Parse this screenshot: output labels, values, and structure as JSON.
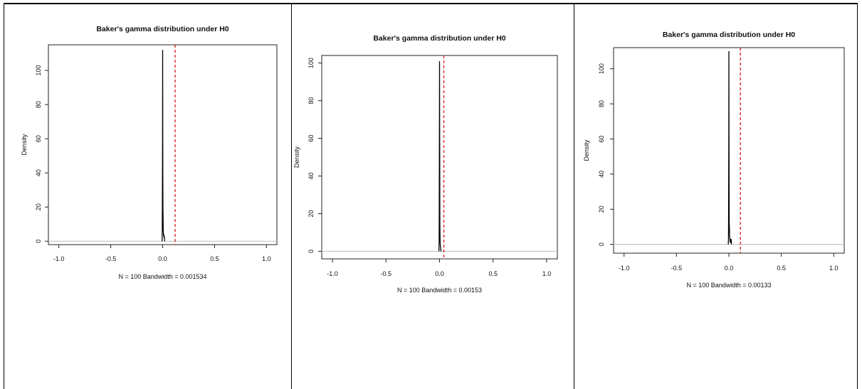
{
  "chart_data": [
    {
      "type": "line",
      "title": "Baker's gamma distribution under H0",
      "xlabel": "N = 100  Bandwidth = 0.001534",
      "ylabel": "Density",
      "xlim": [
        -1.1,
        1.1
      ],
      "ylim": [
        -2,
        115
      ],
      "x_ticks": [
        -1.0,
        -0.5,
        0.0,
        0.5,
        1.0
      ],
      "x_tick_labels": [
        "-1.0",
        "-0.5",
        "0.0",
        "0.5",
        "1.0"
      ],
      "y_ticks": [
        0,
        20,
        40,
        60,
        80,
        100
      ],
      "y_tick_labels": [
        "0",
        "20",
        "40",
        "60",
        "80",
        "100"
      ],
      "observed_value": 0.12,
      "series": [
        {
          "x": [
            -0.006,
            -0.004,
            -0.003,
            -0.002,
            -0.001,
            0.0,
            0.001,
            0.002,
            0.003,
            0.004,
            0.005,
            0.006,
            0.008,
            0.01,
            0.012,
            0.014,
            0.016,
            0.018,
            0.02
          ],
          "y": [
            0,
            3,
            18,
            36,
            60,
            112,
            60,
            36,
            18,
            16,
            10,
            6,
            4,
            3,
            4,
            2,
            3,
            1,
            0
          ]
        }
      ],
      "colors": {
        "density": "#000000",
        "observed_line": "#d62728",
        "baseline": "#bbbbbb"
      }
    },
    {
      "type": "line",
      "title": "Baker's gamma distribution under H0",
      "xlabel": "N = 100  Bandwidth = 0.00153",
      "ylabel": "Density",
      "xlim": [
        -1.1,
        1.1
      ],
      "ylim": [
        -4,
        104
      ],
      "x_ticks": [
        -1.0,
        -0.5,
        0.0,
        0.5,
        1.0
      ],
      "x_tick_labels": [
        "-1.0",
        "-0.5",
        "0.0",
        "0.5",
        "1.0"
      ],
      "y_ticks": [
        0,
        20,
        40,
        60,
        80,
        100
      ],
      "y_tick_labels": [
        "0",
        "20",
        "40",
        "60",
        "80",
        "100"
      ],
      "observed_value": 0.04,
      "series": [
        {
          "x": [
            -0.006,
            -0.004,
            -0.003,
            -0.002,
            -0.001,
            0.0,
            0.001,
            0.002,
            0.003,
            0.004,
            0.005,
            0.006,
            0.008,
            0.01,
            0.012,
            0.014
          ],
          "y": [
            0,
            4,
            15,
            48,
            70,
            101,
            70,
            48,
            15,
            10,
            6,
            4,
            3,
            2,
            1,
            0
          ]
        }
      ],
      "colors": {
        "density": "#000000",
        "observed_line": "#d62728",
        "baseline": "#bbbbbb"
      }
    },
    {
      "type": "line",
      "title": "Baker's gamma distribution under H0",
      "xlabel": "N = 100  Bandwidth = 0.00133",
      "ylabel": "Density",
      "xlim": [
        -1.1,
        1.1
      ],
      "ylim": [
        -5,
        112
      ],
      "x_ticks": [
        -1.0,
        -0.5,
        0.0,
        0.5,
        1.0
      ],
      "x_tick_labels": [
        "-1.0",
        "-0.5",
        "0.0",
        "0.5",
        "1.0"
      ],
      "y_ticks": [
        0,
        20,
        40,
        60,
        80,
        100
      ],
      "y_tick_labels": [
        "0",
        "20",
        "40",
        "60",
        "80",
        "100"
      ],
      "observed_value": 0.11,
      "series": [
        {
          "x": [
            -0.006,
            -0.004,
            -0.003,
            -0.002,
            -0.001,
            0.0,
            0.001,
            0.002,
            0.003,
            0.004,
            0.005,
            0.006,
            0.008,
            0.01,
            0.012,
            0.014,
            0.016,
            0.018,
            0.02,
            0.022,
            0.024
          ],
          "y": [
            0,
            3,
            12,
            33,
            60,
            110,
            60,
            33,
            12,
            11,
            9,
            6,
            4,
            3,
            1,
            3,
            1,
            3,
            2,
            3,
            0
          ]
        }
      ],
      "colors": {
        "density": "#000000",
        "observed_line": "#d62728",
        "baseline": "#bbbbbb"
      }
    }
  ]
}
